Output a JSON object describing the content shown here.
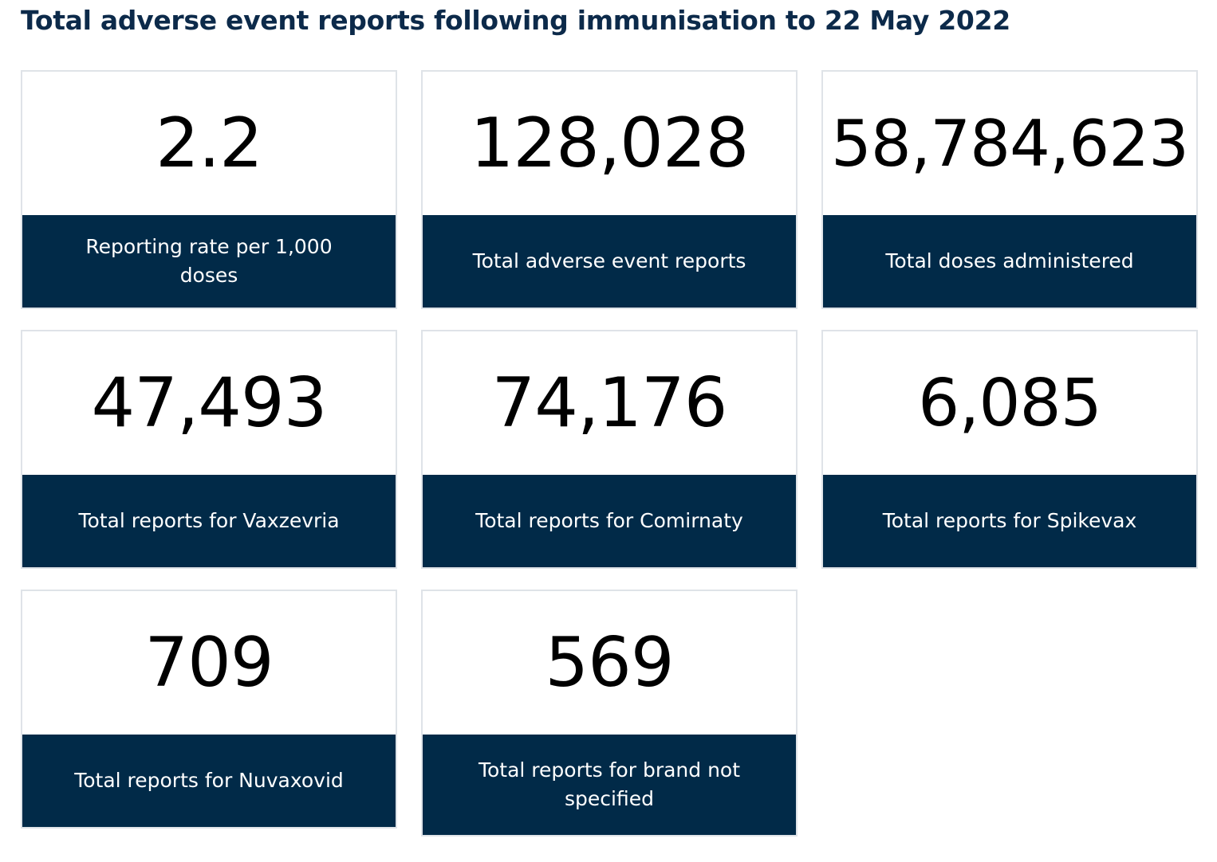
{
  "header": {
    "title": "Total adverse event reports following immunisation to 22 May 2022"
  },
  "cards": [
    {
      "value": "2.2",
      "label": "Reporting rate per 1,000 doses"
    },
    {
      "value": "128,028",
      "label": "Total adverse event reports"
    },
    {
      "value": "58,784,623",
      "label": "Total doses administered"
    },
    {
      "value": "47,493",
      "label": "Total reports for Vaxzevria"
    },
    {
      "value": "74,176",
      "label": "Total reports for Comirnaty"
    },
    {
      "value": "6,085",
      "label": "Total reports for Spikevax"
    },
    {
      "value": "709",
      "label": "Total reports for Nuvaxovid"
    },
    {
      "value": "569",
      "label": "Total reports for brand not specified"
    }
  ],
  "colors": {
    "title": "#0c2a4a",
    "label_background": "#012a48",
    "label_text": "#ffffff",
    "card_border": "#dfe3e8",
    "value_text": "#000000"
  }
}
